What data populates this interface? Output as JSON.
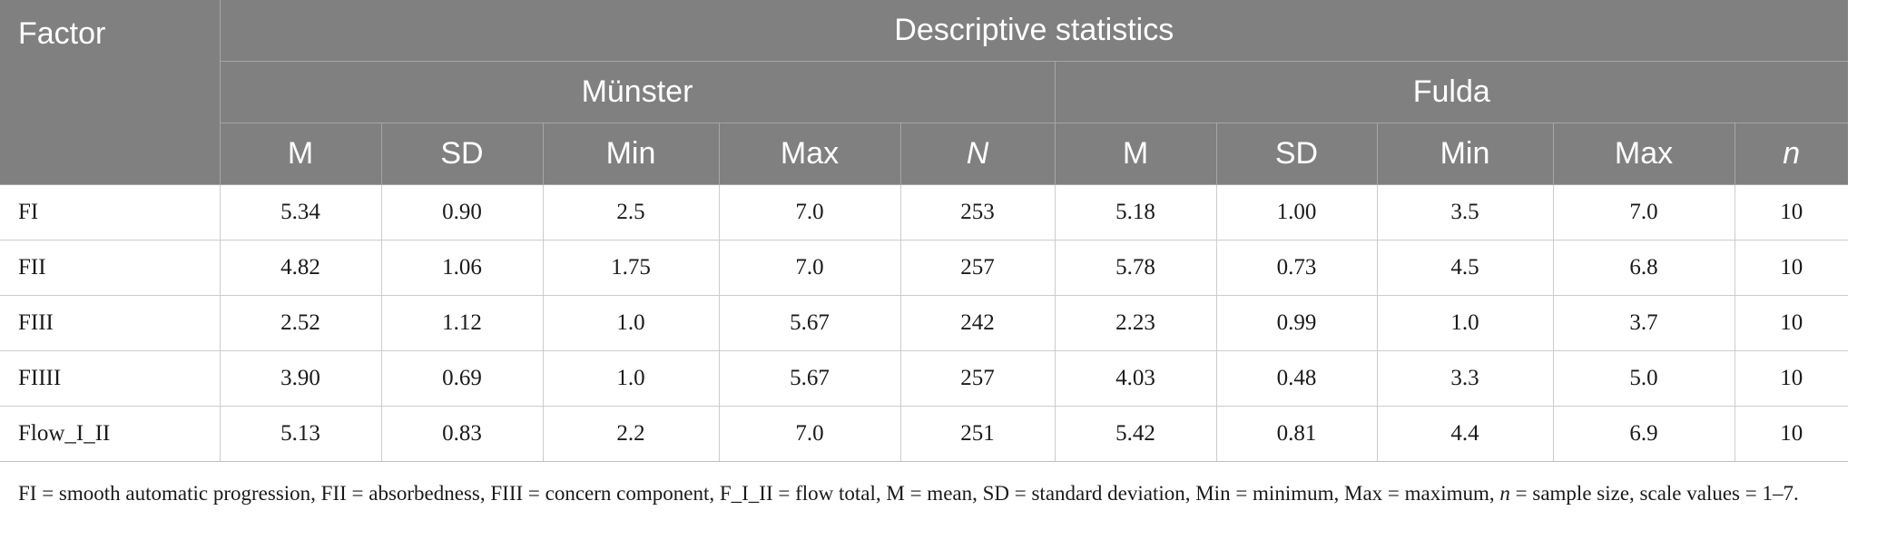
{
  "table": {
    "header": {
      "factor": "Factor",
      "group": "Descriptive statistics",
      "sites": [
        "Münster",
        "Fulda"
      ],
      "columns_site1": [
        "M",
        "SD",
        "Min",
        "Max",
        "N"
      ],
      "columns_site2": [
        "M",
        "SD",
        "Min",
        "Max",
        "n"
      ]
    },
    "rows": [
      {
        "factor": "FI",
        "values": [
          "5.34",
          "0.90",
          "2.5",
          "7.0",
          "253",
          "5.18",
          "1.00",
          "3.5",
          "7.0",
          "10"
        ]
      },
      {
        "factor": "FII",
        "values": [
          "4.82",
          "1.06",
          "1.75",
          "7.0",
          "257",
          "5.78",
          "0.73",
          "4.5",
          "6.8",
          "10"
        ]
      },
      {
        "factor": "FIII",
        "values": [
          "2.52",
          "1.12",
          "1.0",
          "5.67",
          "242",
          "2.23",
          "0.99",
          "1.0",
          "3.7",
          "10"
        ]
      },
      {
        "factor": "FIIII",
        "values": [
          "3.90",
          "0.69",
          "1.0",
          "5.67",
          "257",
          "4.03",
          "0.48",
          "3.3",
          "5.0",
          "10"
        ]
      },
      {
        "factor": "Flow_I_II",
        "values": [
          "5.13",
          "0.83",
          "2.2",
          "7.0",
          "251",
          "5.42",
          "0.81",
          "4.4",
          "6.9",
          "10"
        ]
      }
    ]
  },
  "footnote": {
    "part1": "FI = smooth automatic progression, FII = absorbedness, FIII = concern component, F_I_II = flow total, M = mean, SD = standard deviation, Min = minimum, Max = maximum, ",
    "n_symbol": "n",
    "part2": " = sample size, scale values = 1–7."
  }
}
